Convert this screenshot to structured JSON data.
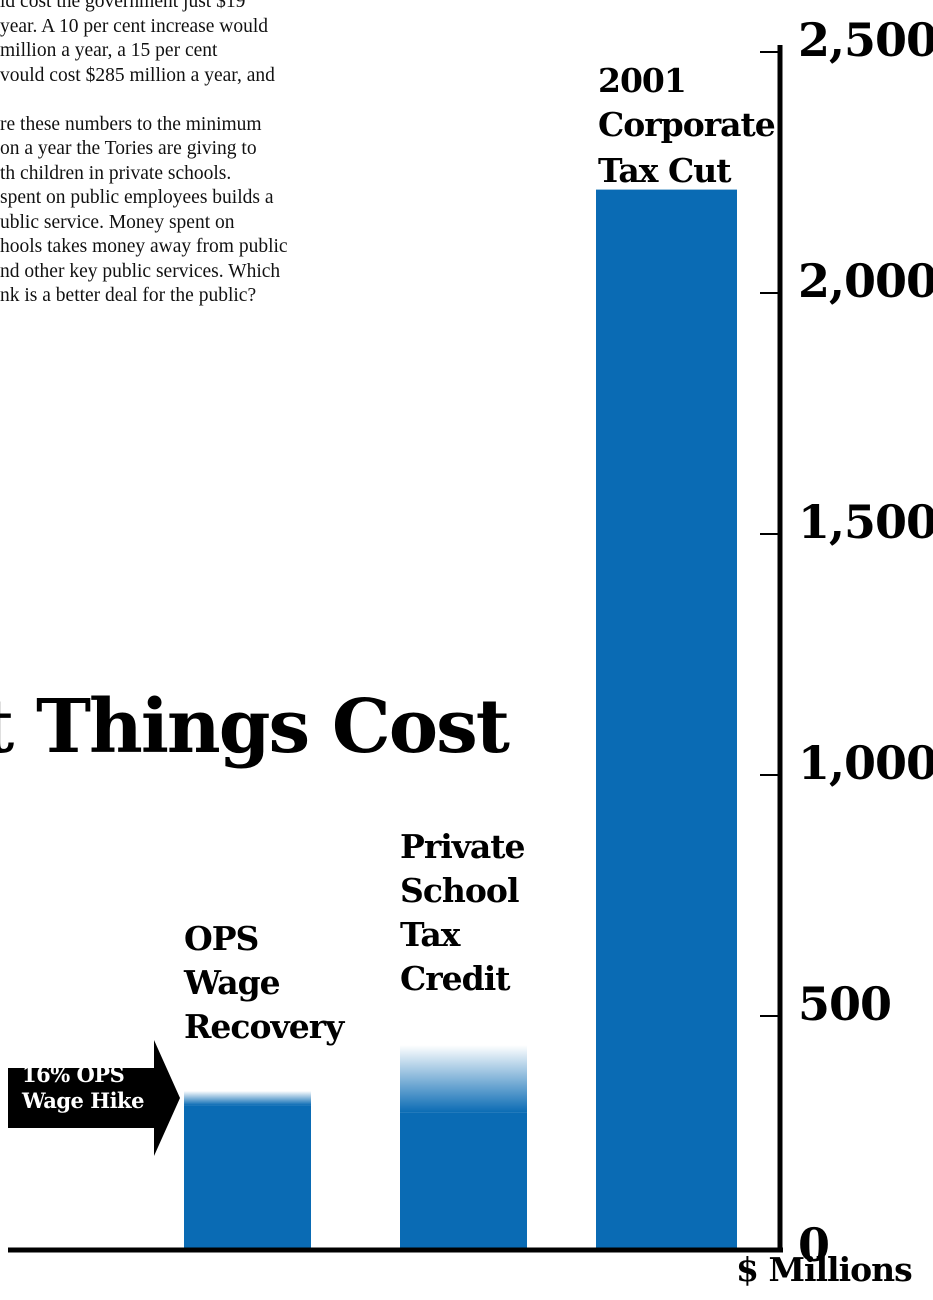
{
  "article": {
    "lines": [
      "ld cost the government just $19",
      "year. A 10 per cent increase would",
      " million a year, a 15 per cent",
      "vould cost $285 million a year, and",
      "",
      "re these numbers to the minimum",
      "on a year the Tories are giving to",
      "th children in private schools.",
      " spent on public employees builds a",
      "ublic service. Money spent on",
      "hools takes money away from public",
      "nd other key public services. Which",
      "nk is a better deal for the public?"
    ]
  },
  "headline": "hat Things Cost",
  "arrow_label": [
    "16% OPS",
    "Wage Hike"
  ],
  "colors": {
    "bar": "#0a6bb4",
    "axis": "#000000",
    "arrow": "#000000"
  },
  "chart_data": {
    "type": "bar",
    "categories": [
      "OPS Wage Recovery",
      "Private School Tax Credit",
      "2001 Corporate Tax Cut"
    ],
    "category_label_lines": [
      [
        "OPS",
        "Wage",
        "Recovery"
      ],
      [
        "Private",
        "School",
        "Tax",
        "Credit"
      ],
      [
        "2001",
        "Corporate",
        "Tax Cut"
      ]
    ],
    "values": [
      300,
      285,
      2200
    ],
    "faded_extension_values": [
      330,
      425,
      null
    ],
    "ylim": [
      0,
      2500
    ],
    "yticks": [
      0,
      500,
      1000,
      1500,
      2000,
      2500
    ],
    "ytick_labels": [
      "0",
      "500",
      "1,000",
      "1,500",
      "2,000",
      "2,500"
    ],
    "ylabel": "$ Millions",
    "axis_position": "right",
    "grid": false,
    "legend": "none"
  }
}
